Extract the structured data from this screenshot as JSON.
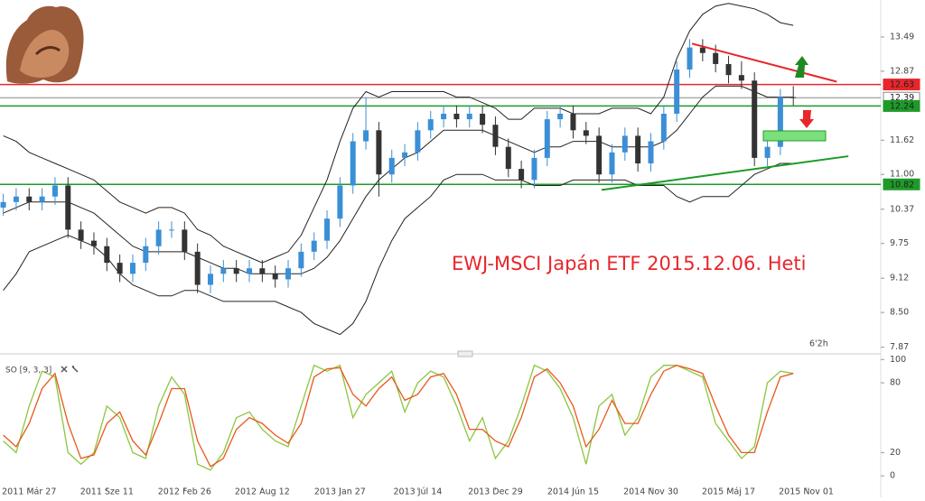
{
  "chart_data": [
    {
      "type": "candlestick",
      "annotation": "EWJ-MSCI Japán ETF 2015.12.06. Heti",
      "timeframe_label": "6'2h",
      "x": [
        -8,
        -4,
        0,
        4,
        8,
        12,
        16,
        20,
        24,
        28,
        32,
        36,
        40,
        44,
        48,
        52,
        56,
        60,
        64,
        68,
        72,
        76,
        80,
        84,
        88,
        92,
        96,
        100,
        104,
        108,
        112,
        116,
        120,
        124,
        128,
        132,
        136,
        140,
        144,
        148,
        152,
        156,
        160,
        164,
        168,
        172,
        176,
        180,
        184,
        188,
        192,
        196,
        200,
        204,
        208,
        212,
        216,
        220,
        224,
        228,
        232,
        236
      ],
      "open": [
        10.4,
        10.5,
        10.6,
        10.5,
        10.6,
        10.8,
        10.0,
        9.8,
        9.7,
        9.4,
        9.2,
        9.4,
        9.7,
        10.0,
        10.0,
        9.6,
        9.0,
        9.2,
        9.3,
        9.2,
        9.3,
        9.2,
        9.1,
        9.3,
        9.6,
        9.8,
        10.2,
        10.8,
        11.6,
        11.8,
        11.0,
        11.3,
        11.4,
        11.8,
        12.0,
        12.1,
        12.0,
        12.1,
        11.9,
        11.5,
        11.1,
        10.9,
        11.3,
        12.0,
        12.1,
        11.8,
        11.7,
        11.0,
        11.4,
        11.7,
        11.2,
        11.6,
        12.1,
        12.9,
        13.3,
        13.2,
        13.0,
        12.8,
        12.7,
        11.3,
        11.5,
        12.4
      ],
      "high": [
        10.65,
        10.75,
        10.75,
        10.75,
        10.95,
        10.95,
        10.15,
        9.95,
        9.85,
        9.55,
        9.55,
        9.85,
        10.15,
        10.15,
        10.15,
        9.75,
        9.35,
        9.45,
        9.45,
        9.45,
        9.45,
        9.35,
        9.45,
        9.75,
        9.95,
        10.35,
        10.95,
        11.75,
        12.4,
        11.95,
        11.45,
        11.55,
        11.95,
        12.15,
        12.25,
        12.25,
        12.25,
        12.25,
        12.05,
        11.65,
        11.25,
        11.45,
        12.15,
        12.25,
        12.25,
        11.95,
        11.85,
        11.55,
        11.85,
        11.85,
        11.75,
        12.25,
        13.05,
        13.45,
        13.45,
        13.35,
        13.15,
        13.05,
        12.85,
        11.65,
        12.55,
        12.6
      ],
      "low": [
        10.25,
        10.35,
        10.35,
        10.35,
        10.45,
        9.85,
        9.65,
        9.55,
        9.25,
        9.05,
        9.05,
        9.25,
        9.55,
        9.85,
        9.45,
        8.85,
        8.85,
        9.05,
        9.05,
        9.05,
        9.05,
        8.95,
        8.95,
        9.15,
        9.45,
        9.65,
        10.05,
        10.65,
        11.45,
        10.6,
        10.85,
        11.15,
        11.25,
        11.65,
        11.85,
        11.85,
        11.85,
        11.75,
        11.35,
        10.95,
        10.75,
        10.75,
        11.15,
        11.85,
        11.65,
        11.55,
        10.85,
        10.85,
        11.25,
        11.05,
        11.05,
        11.45,
        11.95,
        12.75,
        13.05,
        12.85,
        12.65,
        12.55,
        11.15,
        11.15,
        11.35,
        12.25
      ],
      "close": [
        10.5,
        10.6,
        10.5,
        10.6,
        10.8,
        10.0,
        9.8,
        9.7,
        9.4,
        9.2,
        9.4,
        9.7,
        10.0,
        10.0,
        9.6,
        9.0,
        9.2,
        9.3,
        9.2,
        9.3,
        9.2,
        9.1,
        9.3,
        9.6,
        9.8,
        10.2,
        10.8,
        11.6,
        11.8,
        11.0,
        11.3,
        11.4,
        11.8,
        12.0,
        12.1,
        12.0,
        12.1,
        11.9,
        11.5,
        11.1,
        10.9,
        11.3,
        12.0,
        12.1,
        11.8,
        11.7,
        11.0,
        11.4,
        11.7,
        11.2,
        11.6,
        12.1,
        12.9,
        13.3,
        13.2,
        13.0,
        12.8,
        12.7,
        11.3,
        11.5,
        12.4,
        12.39
      ],
      "up_color": "#3b8fd6",
      "down_color": "#333333",
      "bands": [
        {
          "color": "#222222",
          "values": [
            11.7,
            11.6,
            11.4,
            11.3,
            11.2,
            11.1,
            11.0,
            10.9,
            10.7,
            10.5,
            10.4,
            10.3,
            10.4,
            10.4,
            10.3,
            10.0,
            9.9,
            9.7,
            9.6,
            9.5,
            9.4,
            9.5,
            9.6,
            9.9,
            10.4,
            10.9,
            11.6,
            12.2,
            12.5,
            12.4,
            12.5,
            12.5,
            12.5,
            12.5,
            12.5,
            12.4,
            12.4,
            12.3,
            12.2,
            12.0,
            12.0,
            12.2,
            12.2,
            12.2,
            12.1,
            12.1,
            12.1,
            12.2,
            12.2,
            12.2,
            12.1,
            12.4,
            13.1,
            13.6,
            13.9,
            14.05,
            14.1,
            14.05,
            14.0,
            13.9,
            13.75,
            13.7
          ]
        },
        {
          "color": "#222222",
          "values": [
            10.3,
            10.4,
            10.5,
            10.5,
            10.5,
            10.5,
            10.4,
            10.3,
            10.1,
            9.9,
            9.7,
            9.6,
            9.6,
            9.6,
            9.6,
            9.5,
            9.4,
            9.3,
            9.3,
            9.2,
            9.2,
            9.2,
            9.2,
            9.2,
            9.3,
            9.5,
            9.8,
            10.2,
            10.6,
            10.9,
            11.1,
            11.3,
            11.4,
            11.6,
            11.8,
            11.8,
            11.8,
            11.8,
            11.7,
            11.6,
            11.5,
            11.4,
            11.5,
            11.5,
            11.6,
            11.6,
            11.6,
            11.5,
            11.5,
            11.5,
            11.5,
            11.6,
            11.8,
            12.1,
            12.4,
            12.6,
            12.6,
            12.6,
            12.5,
            12.4,
            12.4,
            12.4
          ]
        },
        {
          "color": "#222222",
          "values": [
            8.9,
            9.2,
            9.6,
            9.7,
            9.8,
            9.9,
            9.8,
            9.7,
            9.5,
            9.2,
            9.0,
            8.9,
            8.8,
            8.8,
            8.9,
            8.9,
            8.8,
            8.7,
            8.7,
            8.7,
            8.7,
            8.7,
            8.6,
            8.5,
            8.3,
            8.2,
            8.1,
            8.3,
            8.7,
            9.3,
            9.8,
            10.2,
            10.4,
            10.6,
            10.9,
            11.0,
            11.0,
            11.0,
            10.9,
            10.9,
            10.9,
            10.8,
            10.8,
            10.8,
            10.9,
            10.9,
            10.9,
            10.9,
            10.9,
            10.8,
            10.8,
            10.8,
            10.6,
            10.5,
            10.6,
            10.6,
            10.6,
            10.8,
            11.0,
            11.1,
            11.2,
            11.2
          ]
        }
      ],
      "levels": [
        {
          "value": 12.63,
          "color": "#e8262b"
        },
        {
          "value": 12.39,
          "color": "#888888"
        },
        {
          "value": 12.24,
          "color": "#1e9a28"
        },
        {
          "value": 10.82,
          "color": "#1e9a28"
        }
      ],
      "trendlines": [
        {
          "color": "#e8262b",
          "x": [
            204.7,
            249.4
          ],
          "y": [
            13.37,
            12.68
          ]
        },
        {
          "color": "#1e9a28",
          "x": [
            176.8,
            253
          ],
          "y": [
            10.72,
            11.33
          ]
        }
      ],
      "xlim": [
        -9,
        263
      ],
      "ylim": [
        7.75,
        14.16
      ],
      "yticks": [
        13.49,
        12.87,
        11.62,
        {
          "value": 11,
          "label": "11.00"
        },
        10.37,
        9.75,
        9.12,
        {
          "value": 8.5,
          "label": "8.50"
        },
        7.87
      ]
    },
    {
      "type": "line",
      "title": "SO [9, 3, 3]",
      "x": [
        -8,
        -4,
        0,
        4,
        8,
        12,
        16,
        20,
        24,
        28,
        32,
        36,
        40,
        44,
        48,
        52,
        56,
        60,
        64,
        68,
        72,
        76,
        80,
        84,
        88,
        92,
        96,
        100,
        104,
        108,
        112,
        116,
        120,
        124,
        128,
        132,
        136,
        140,
        144,
        148,
        152,
        156,
        160,
        164,
        168,
        172,
        176,
        180,
        184,
        188,
        192,
        196,
        200,
        204,
        208,
        212,
        216,
        220,
        224,
        228,
        232,
        236
      ],
      "series": [
        {
          "color": "#8cc63f",
          "values": [
            30,
            20,
            60,
            90,
            85,
            20,
            10,
            20,
            60,
            50,
            20,
            15,
            60,
            85,
            70,
            10,
            5,
            20,
            50,
            55,
            40,
            30,
            25,
            60,
            95,
            90,
            95,
            50,
            70,
            80,
            90,
            55,
            80,
            90,
            85,
            60,
            30,
            50,
            15,
            30,
            60,
            95,
            90,
            75,
            50,
            10,
            60,
            70,
            35,
            50,
            85,
            95,
            95,
            90,
            85,
            45,
            30,
            15,
            25,
            80,
            90,
            88
          ]
        },
        {
          "color": "#e8581c",
          "values": [
            35,
            25,
            45,
            75,
            88,
            45,
            15,
            18,
            45,
            55,
            30,
            18,
            45,
            75,
            75,
            30,
            8,
            15,
            40,
            50,
            45,
            35,
            28,
            45,
            85,
            92,
            93,
            70,
            60,
            75,
            85,
            65,
            70,
            85,
            88,
            70,
            40,
            40,
            30,
            25,
            50,
            85,
            92,
            80,
            60,
            25,
            40,
            65,
            45,
            45,
            70,
            90,
            95,
            92,
            88,
            60,
            35,
            20,
            20,
            55,
            85,
            88
          ]
        }
      ],
      "xlim": [
        -9,
        263
      ],
      "xticks": [
        {
          "value": 0,
          "label": "2011 Már 27"
        },
        {
          "value": 24,
          "label": "2011 Sze 11"
        },
        {
          "value": 48,
          "label": "2012 Feb 26"
        },
        {
          "value": 72,
          "label": "2012 Aug 12"
        },
        {
          "value": 96,
          "label": "2013 Jan 27"
        },
        {
          "value": 120,
          "label": "2013 Júl 14"
        },
        {
          "value": 144,
          "label": "2013 Dec 29"
        },
        {
          "value": 168,
          "label": "2014 Jún 15"
        },
        {
          "value": 192,
          "label": "2014 Nov 30"
        },
        {
          "value": 216,
          "label": "2015 Máj 17"
        },
        {
          "value": 240,
          "label": "2015 Nov 01"
        }
      ],
      "ylim": [
        -10,
        101
      ],
      "yticks": [
        100,
        80,
        20,
        0
      ]
    }
  ]
}
